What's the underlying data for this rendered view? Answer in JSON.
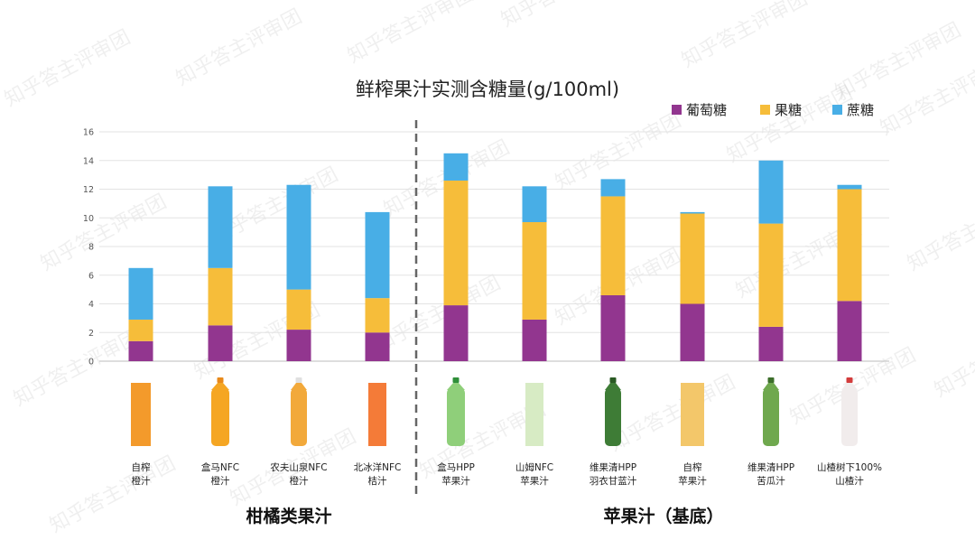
{
  "watermark": "知乎答主评审团",
  "chart_data": {
    "type": "bar",
    "stacked": true,
    "title": "鲜榨果汁实测含糖量(g/100ml)",
    "ylim": [
      0,
      16
    ],
    "yticks": [
      "0",
      "2",
      "4",
      "6",
      "8",
      "10",
      "12",
      "14",
      "16"
    ],
    "grid": true,
    "legend_position": "top-right",
    "categories": [
      [
        "自榨",
        "橙汁"
      ],
      [
        "盒马NFC",
        "橙汁"
      ],
      [
        "农夫山泉NFC",
        "橙汁"
      ],
      [
        "北冰洋NFC",
        "桔汁"
      ],
      [
        "盒马HPP",
        "苹果汁"
      ],
      [
        "山姆NFC",
        "苹果汁"
      ],
      [
        "维果清HPP",
        "羽衣甘蓝汁"
      ],
      [
        "自榨",
        "苹果汁"
      ],
      [
        "维果清HPP",
        "苦瓜汁"
      ],
      [
        "山楂树下100%",
        "山楂汁"
      ]
    ],
    "series": [
      {
        "name": "葡萄糖",
        "color": "#92368f",
        "values": [
          1.4,
          2.5,
          2.2,
          2.0,
          3.9,
          2.9,
          4.6,
          4.0,
          2.4,
          4.2
        ]
      },
      {
        "name": "果糖",
        "color": "#f6bd3a",
        "values": [
          1.5,
          4.0,
          2.8,
          2.4,
          8.7,
          6.8,
          6.9,
          6.3,
          7.2,
          7.8
        ]
      },
      {
        "name": "蔗糖",
        "color": "#48aee6",
        "values": [
          3.6,
          5.7,
          7.3,
          6.0,
          1.9,
          2.5,
          1.2,
          0.1,
          4.4,
          0.3
        ]
      }
    ],
    "groups": [
      {
        "label": "柑橘类果汁",
        "categories": [
          0,
          3
        ]
      },
      {
        "label": "苹果汁（基底）",
        "categories": [
          4,
          9
        ]
      }
    ]
  }
}
